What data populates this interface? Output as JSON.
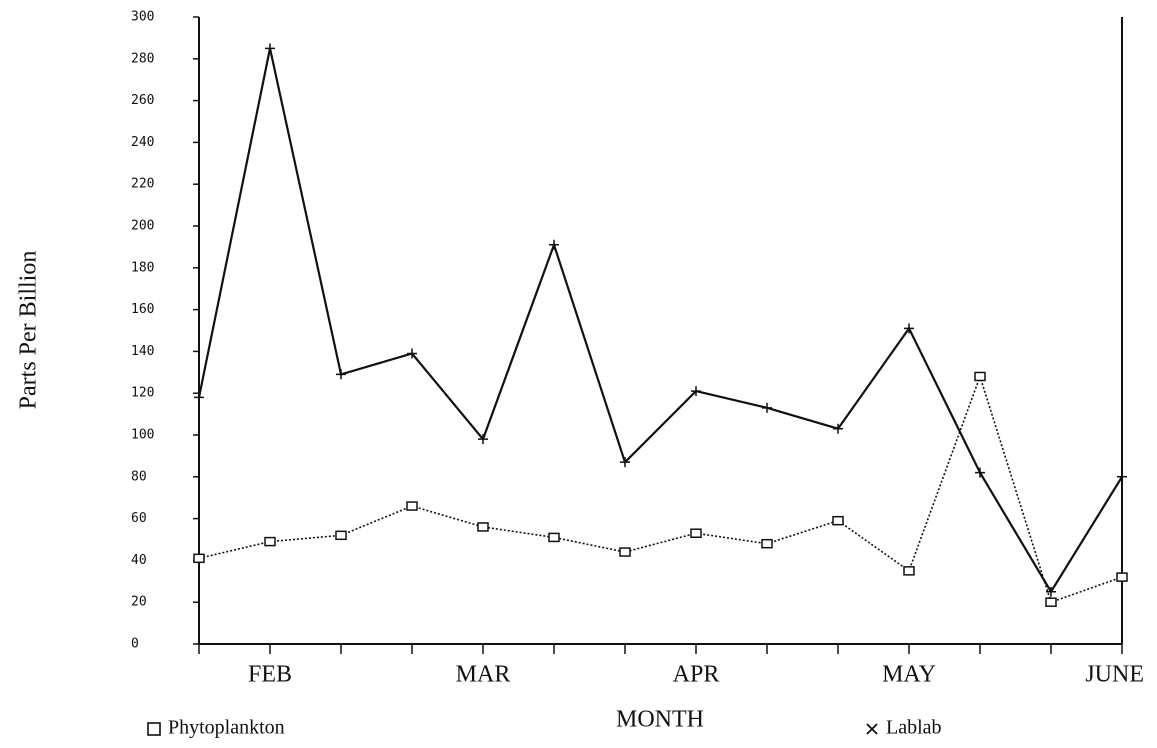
{
  "chart_data": {
    "type": "line",
    "x_label": "MONTH",
    "y_label": "Parts Per Billion",
    "categories": [
      null,
      "FEB",
      null,
      null,
      "MAR",
      null,
      null,
      "APR",
      null,
      null,
      "MAY",
      null,
      null,
      "JUNE"
    ],
    "series": [
      {
        "name": "Phytoplankton",
        "color": "#111111",
        "marker": "square",
        "dash": "dotted",
        "values": [
          41,
          49,
          52,
          66,
          56,
          51,
          44,
          53,
          48,
          59,
          35,
          128,
          20,
          32
        ]
      },
      {
        "name": "Lablab",
        "color": "#111111",
        "marker": "x",
        "dash": "solid",
        "values": [
          118,
          285,
          129,
          139,
          98,
          191,
          87,
          121,
          113,
          103,
          151,
          82,
          25,
          80
        ]
      }
    ],
    "ylim": [
      0,
      300
    ],
    "yticks": [
      0,
      20,
      40,
      60,
      80,
      100,
      120,
      140,
      160,
      180,
      200,
      220,
      240,
      260,
      280,
      300
    ],
    "legend": "bottom"
  }
}
